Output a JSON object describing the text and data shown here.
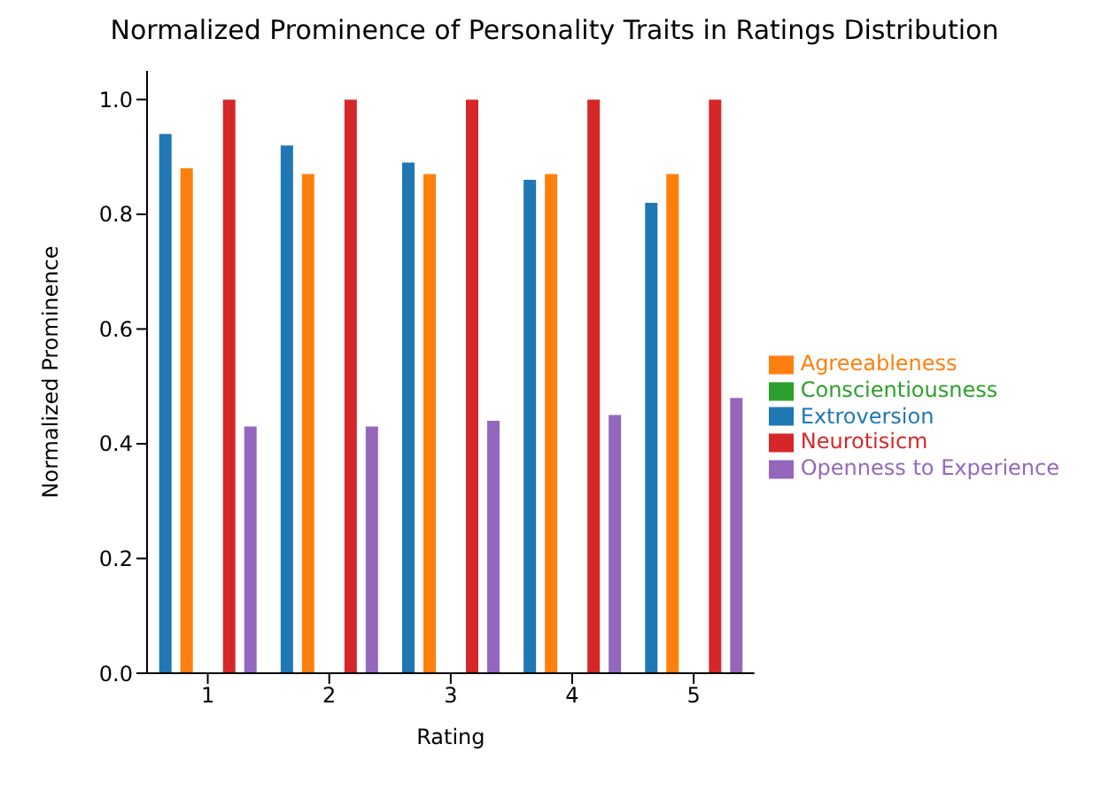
{
  "chart_data": {
    "type": "bar",
    "title": "Normalized Prominence of Personality Traits in Ratings Distribution",
    "xlabel": "Rating",
    "ylabel": "Normalized Prominence",
    "categories": [
      "1",
      "2",
      "3",
      "4",
      "5"
    ],
    "series": [
      {
        "name": "Extroversion",
        "color": "#1f77b4",
        "values": [
          0.94,
          0.92,
          0.89,
          0.86,
          0.82
        ]
      },
      {
        "name": "Agreeableness",
        "color": "#ff7f0e",
        "values": [
          0.88,
          0.87,
          0.87,
          0.87,
          0.87
        ]
      },
      {
        "name": "Conscientiousness",
        "color": "#2ca02c",
        "values": [
          0,
          0,
          0,
          0,
          0
        ]
      },
      {
        "name": "Neurotisicm",
        "color": "#d62728",
        "values": [
          1,
          1,
          1,
          1,
          1
        ]
      },
      {
        "name": "Openness to Experience",
        "color": "#9467bd",
        "values": [
          0.43,
          0.43,
          0.44,
          0.45,
          0.48
        ]
      }
    ],
    "ylim": [
      0,
      1.05
    ],
    "yticks": [
      {
        "value": 0,
        "label": "0.0"
      },
      {
        "value": 0.2,
        "label": "0.2"
      },
      {
        "value": 0.4,
        "label": "0.4"
      },
      {
        "value": 0.6,
        "label": "0.6"
      },
      {
        "value": 0.8,
        "label": "0.8"
      },
      {
        "value": 1,
        "label": "1.0"
      }
    ],
    "grid": false,
    "legend": "right"
  }
}
